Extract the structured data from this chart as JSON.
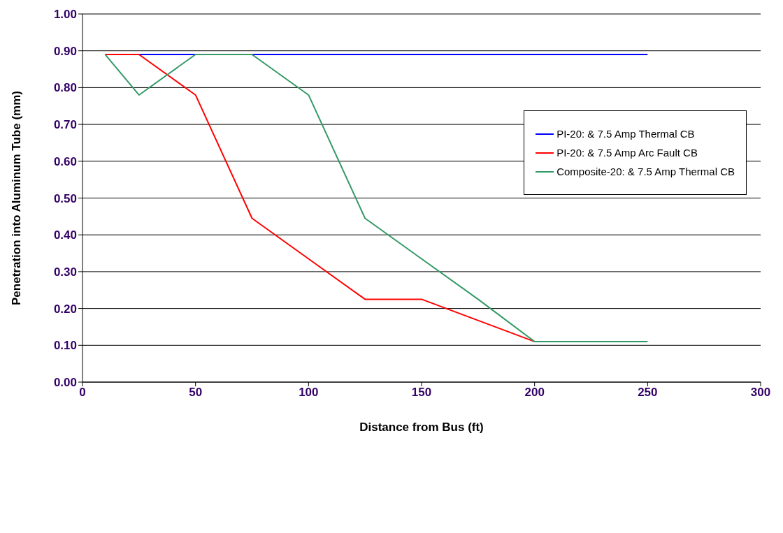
{
  "chart_data": {
    "type": "line",
    "xlabel": "Distance from Bus (ft)",
    "ylabel": "Penetration into Aluminum Tube (mm)",
    "xlim": [
      0,
      300
    ],
    "xticks": [
      0,
      50,
      100,
      150,
      200,
      250,
      300
    ],
    "ylim": [
      0,
      1
    ],
    "yticks": [
      {
        "value": 0,
        "label": "0.00"
      },
      {
        "value": 0.1,
        "label": "0.10"
      },
      {
        "value": 0.2,
        "label": "0.20"
      },
      {
        "value": 0.3,
        "label": "0.30"
      },
      {
        "value": 0.4,
        "label": "0.40"
      },
      {
        "value": 0.5,
        "label": "0.50"
      },
      {
        "value": 0.6,
        "label": "0.60"
      },
      {
        "value": 0.7,
        "label": "0.70"
      },
      {
        "value": 0.8,
        "label": "0.80"
      },
      {
        "value": 0.9,
        "label": "0.90"
      },
      {
        "value": 1,
        "label": "1.00"
      }
    ],
    "grid": "y",
    "legend": "top right",
    "marker": "none",
    "line_style": "solid",
    "series": [
      {
        "name": "PI-20: & 7.5 Amp Thermal CB",
        "color": "#0000ff",
        "x": [
          25,
          50,
          75,
          100,
          125,
          150,
          175,
          200,
          250
        ],
        "values": [
          0.89,
          0.89,
          0.89,
          0.89,
          0.89,
          0.89,
          0.89,
          0.89,
          0.89
        ]
      },
      {
        "name": "PI-20: & 7.5 Amp Arc Fault CB",
        "color": "#ff0000",
        "x": [
          10,
          25,
          50,
          75,
          100,
          125,
          150,
          200
        ],
        "values": [
          0.89,
          0.89,
          0.78,
          0.445,
          0.335,
          0.225,
          0.225,
          0.11
        ]
      },
      {
        "name": "Composite-20: & 7.5 Amp Thermal CB",
        "color": "#339966",
        "x": [
          10,
          25,
          50,
          75,
          100,
          125,
          150,
          175,
          200,
          250
        ],
        "values": [
          0.89,
          0.78,
          0.89,
          0.89,
          0.78,
          0.445,
          0.335,
          0.225,
          0.11,
          0.11
        ]
      }
    ]
  }
}
